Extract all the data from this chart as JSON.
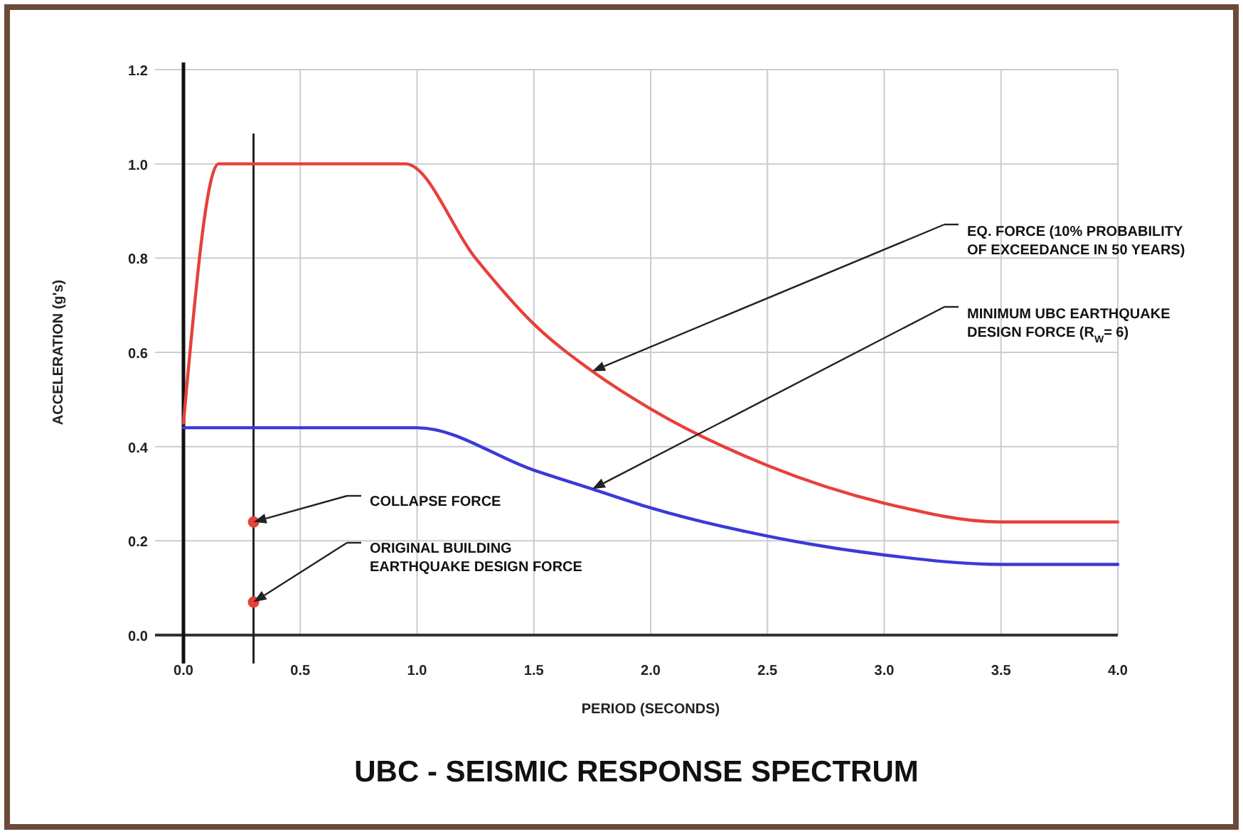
{
  "chart_data": {
    "type": "line",
    "title": "UBC - SEISMIC RESPONSE SPECTRUM",
    "xlabel": "PERIOD (SECONDS)",
    "ylabel": "ACCELERATION (g's)",
    "xlim": [
      0,
      4
    ],
    "ylim": [
      0,
      1.2
    ],
    "xticks": [
      {
        "value": 0,
        "label": "0.0"
      },
      {
        "value": 0.5,
        "label": "0.5"
      },
      {
        "value": 1,
        "label": "1.0"
      },
      {
        "value": 1.5,
        "label": "1.5"
      },
      {
        "value": 2,
        "label": "2.0"
      },
      {
        "value": 2.5,
        "label": "2.5"
      },
      {
        "value": 3,
        "label": "3.0"
      },
      {
        "value": 3.5,
        "label": "3.5"
      },
      {
        "value": 4,
        "label": "4.0"
      }
    ],
    "yticks": [
      {
        "value": 0,
        "label": "0.0"
      },
      {
        "value": 0.2,
        "label": "0.2"
      },
      {
        "value": 0.4,
        "label": "0.4"
      },
      {
        "value": 0.6,
        "label": "0.6"
      },
      {
        "value": 0.8,
        "label": "0.8"
      },
      {
        "value": 1,
        "label": "1.0"
      },
      {
        "value": 1.2,
        "label": "1.2"
      }
    ],
    "grid": true,
    "line_style": "solid",
    "series": [
      {
        "color": "#e8403a",
        "x": [
          0,
          0.15,
          0.95,
          1.25,
          1.5,
          1.75,
          2.0,
          2.5,
          3.0,
          3.5,
          4.0
        ],
        "values": [
          0.45,
          1.0,
          1.0,
          0.8,
          0.66,
          0.56,
          0.48,
          0.36,
          0.28,
          0.24,
          0.24
        ]
      },
      {
        "color": "#3a3ad8",
        "x": [
          0,
          1.0,
          1.5,
          1.75,
          2.0,
          2.5,
          3.0,
          3.5,
          4.0
        ],
        "values": [
          0.44,
          0.44,
          0.35,
          0.31,
          0.27,
          0.21,
          0.17,
          0.15,
          0.15
        ]
      },
      {
        "type": "scatter",
        "color": "#e8403a",
        "marker": "circle",
        "x": [
          0.3,
          0.3
        ],
        "values": [
          0.24,
          0.07
        ]
      }
    ],
    "ref_lines": [
      {
        "axis": "x",
        "value": 0.3,
        "color": "#222222"
      }
    ],
    "annotations": [
      "EQ. FORCE (10% PROBABILITY\nOF EXCEEDANCE IN 50 YEARS)",
      "MINIMUM UBC EARTHQUAKE\nDESIGN FORCE (R$_{W}$= 6)",
      "COLLAPSE FORCE",
      "ORIGINAL BUILDING\nEARTHQUAKE DESIGN FORCE"
    ]
  }
}
